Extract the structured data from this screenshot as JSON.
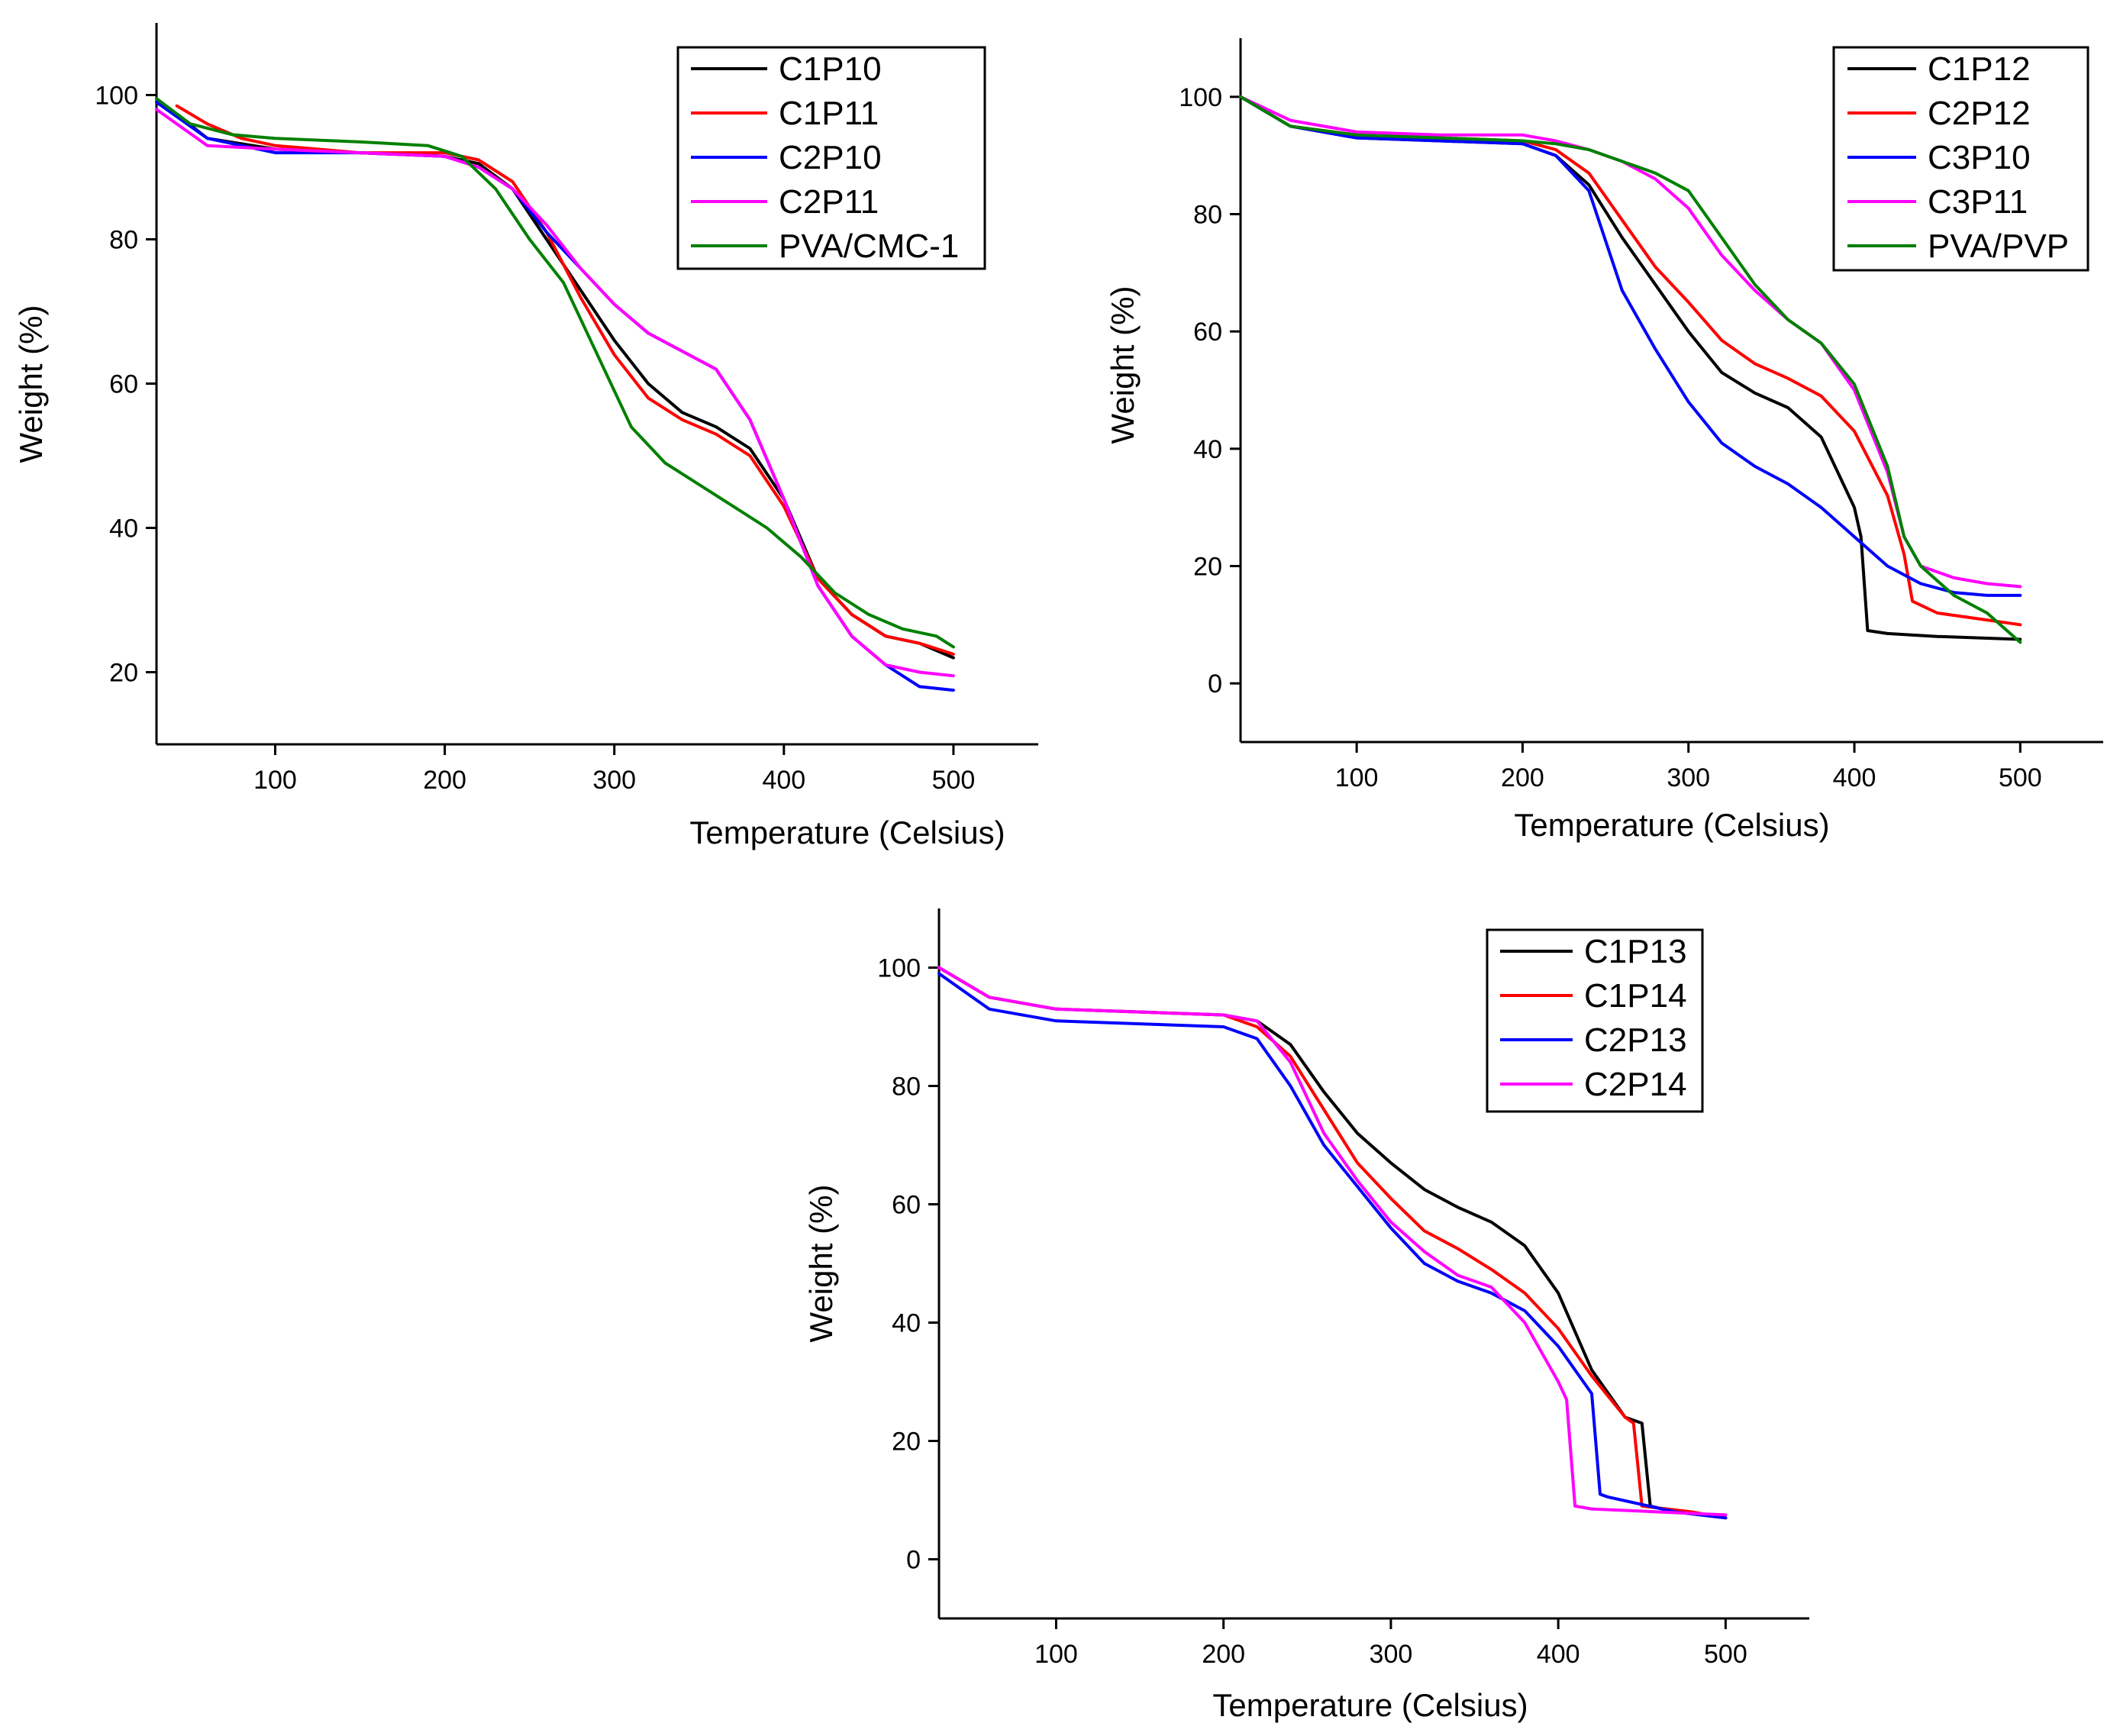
{
  "chart_data": [
    {
      "type": "line",
      "xlabel": "Temperature (Celsius)",
      "ylabel": "Weight (%)",
      "xlim": [
        30,
        550
      ],
      "ylim": [
        10,
        110
      ],
      "xticks": [
        100,
        200,
        300,
        400,
        500
      ],
      "yticks": [
        20,
        40,
        60,
        80,
        100
      ],
      "legend_position": "top-right",
      "series": [
        {
          "name": "C1P10",
          "color": "#000000",
          "x": [
            30,
            60,
            100,
            150,
            200,
            220,
            240,
            260,
            280,
            300,
            320,
            340,
            360,
            380,
            400,
            420,
            440,
            460,
            480,
            500
          ],
          "y": [
            99.5,
            94,
            92.5,
            92,
            91.5,
            90.5,
            87,
            80,
            73,
            66,
            60,
            56,
            54,
            51,
            44,
            33,
            28,
            25,
            24,
            22
          ]
        },
        {
          "name": "C1P11",
          "color": "#ff0000",
          "x": [
            42,
            60,
            80,
            100,
            150,
            200,
            220,
            240,
            260,
            280,
            300,
            320,
            340,
            360,
            380,
            400,
            420,
            440,
            460,
            480,
            500
          ],
          "y": [
            98.5,
            96,
            94,
            93,
            92,
            92,
            91,
            88,
            81,
            72,
            64,
            58,
            55,
            53,
            50,
            43,
            33,
            28,
            25,
            24,
            22.5
          ]
        },
        {
          "name": "C2P10",
          "color": "#0000ff",
          "x": [
            30,
            60,
            100,
            150,
            200,
            220,
            240,
            260,
            280,
            300,
            320,
            340,
            360,
            380,
            400,
            420,
            440,
            460,
            480,
            500
          ],
          "y": [
            99,
            94,
            92,
            92,
            91.5,
            90,
            87,
            81,
            76,
            71,
            67,
            64.5,
            62,
            55,
            44,
            32,
            25,
            21,
            18,
            17.5
          ]
        },
        {
          "name": "C2P11",
          "color": "#ff00ff",
          "x": [
            30,
            60,
            100,
            150,
            200,
            220,
            240,
            260,
            280,
            300,
            320,
            340,
            360,
            380,
            400,
            420,
            440,
            460,
            480,
            500
          ],
          "y": [
            98,
            93,
            92.5,
            92,
            91.5,
            90,
            87,
            82,
            76,
            71,
            67,
            64.5,
            62,
            55,
            44,
            32,
            25,
            21,
            20,
            19.5
          ]
        },
        {
          "name": "PVA/CMC-1",
          "color": "#008000",
          "x": [
            30,
            50,
            75,
            100,
            150,
            190,
            210,
            230,
            250,
            270,
            290,
            310,
            330,
            350,
            370,
            390,
            410,
            430,
            450,
            470,
            490,
            500
          ],
          "y": [
            99.5,
            96,
            94.5,
            94,
            93.5,
            93,
            91.5,
            87,
            80,
            74,
            64,
            54,
            49,
            46,
            43,
            40,
            36,
            31,
            28,
            26,
            25,
            23.5
          ]
        }
      ]
    },
    {
      "type": "line",
      "xlabel": "Temperature (Celsius)",
      "ylabel": "Weight (%)",
      "xlim": [
        30,
        550
      ],
      "ylim": [
        -10,
        110
      ],
      "xticks": [
        100,
        200,
        300,
        400,
        500
      ],
      "yticks": [
        0,
        20,
        40,
        60,
        80,
        100
      ],
      "legend_position": "top-right",
      "series": [
        {
          "name": "C1P12",
          "color": "#000000",
          "x": [
            30,
            60,
            100,
            150,
            200,
            220,
            240,
            260,
            280,
            300,
            320,
            340,
            360,
            380,
            400,
            404,
            408,
            420,
            450,
            500
          ],
          "y": [
            100,
            95,
            93,
            92.5,
            92,
            90,
            85,
            76,
            68,
            60,
            53,
            49.5,
            47,
            42,
            30,
            25,
            9,
            8.5,
            8,
            7.5
          ]
        },
        {
          "name": "C2P12",
          "color": "#ff0000",
          "x": [
            30,
            60,
            100,
            150,
            200,
            220,
            240,
            260,
            280,
            300,
            320,
            340,
            360,
            380,
            400,
            420,
            430,
            435,
            450,
            475,
            500
          ],
          "y": [
            100,
            95,
            93.5,
            93,
            92.5,
            91,
            87,
            79,
            71,
            65,
            58.5,
            54.5,
            52,
            49,
            43,
            32,
            22,
            14,
            12,
            11,
            10
          ]
        },
        {
          "name": "C3P10",
          "color": "#0000ff",
          "x": [
            30,
            33,
            60,
            100,
            150,
            200,
            220,
            240,
            260,
            280,
            300,
            320,
            340,
            360,
            380,
            400,
            420,
            440,
            460,
            480,
            500
          ],
          "y": [
            100,
            99.5,
            95,
            93,
            92.5,
            92,
            90,
            84,
            67,
            57,
            48,
            41,
            37,
            34,
            30,
            25,
            20,
            17,
            15.5,
            15,
            15
          ]
        },
        {
          "name": "C3P11",
          "color": "#ff00ff",
          "x": [
            30,
            60,
            100,
            150,
            200,
            220,
            240,
            260,
            280,
            300,
            320,
            340,
            360,
            380,
            400,
            420,
            430,
            440,
            460,
            480,
            500
          ],
          "y": [
            100,
            96,
            94,
            93.5,
            93.5,
            92.5,
            91,
            89,
            86,
            81,
            73,
            67,
            62,
            58,
            50,
            36,
            25,
            20,
            18,
            17,
            16.5
          ]
        },
        {
          "name": "PVA/PVP",
          "color": "#008000",
          "x": [
            30,
            60,
            100,
            150,
            200,
            220,
            240,
            260,
            280,
            300,
            320,
            340,
            360,
            380,
            400,
            420,
            430,
            440,
            460,
            480,
            500
          ],
          "y": [
            100,
            95,
            93.5,
            93,
            92.5,
            92,
            91,
            89,
            87,
            84,
            76,
            68,
            62,
            58,
            51,
            37,
            25,
            20,
            15,
            12,
            7
          ]
        }
      ]
    },
    {
      "type": "line",
      "xlabel": "Temperature (Celsius)",
      "ylabel": "Weight (%)",
      "xlim": [
        30,
        550
      ],
      "ylim": [
        -10,
        110
      ],
      "xticks": [
        100,
        200,
        300,
        400,
        500
      ],
      "yticks": [
        0,
        20,
        40,
        60,
        80,
        100
      ],
      "legend_position": "top-right",
      "series": [
        {
          "name": "C1P13",
          "color": "#000000",
          "x": [
            30,
            60,
            100,
            150,
            200,
            220,
            240,
            260,
            280,
            300,
            320,
            340,
            360,
            380,
            400,
            420,
            440,
            450,
            455,
            470,
            500
          ],
          "y": [
            100,
            95,
            93,
            92.5,
            92,
            91,
            87,
            79,
            72,
            67,
            62.5,
            59.5,
            57,
            53,
            45,
            32,
            24,
            23,
            9,
            8,
            7
          ]
        },
        {
          "name": "C1P14",
          "color": "#ff0000",
          "x": [
            30,
            60,
            100,
            150,
            200,
            220,
            240,
            260,
            280,
            300,
            320,
            340,
            360,
            380,
            400,
            420,
            440,
            445,
            450,
            480,
            500
          ],
          "y": [
            100,
            95,
            93,
            92.5,
            92,
            90,
            85,
            76,
            67,
            61,
            55.5,
            52.5,
            49,
            45,
            39,
            31,
            24,
            23,
            9,
            8,
            7
          ]
        },
        {
          "name": "C2P13",
          "color": "#0000ff",
          "x": [
            30,
            60,
            100,
            150,
            200,
            220,
            240,
            260,
            280,
            300,
            320,
            340,
            360,
            380,
            400,
            420,
            425,
            430,
            470,
            500
          ],
          "y": [
            99,
            93,
            91,
            90.5,
            90,
            88,
            80,
            70,
            63,
            56,
            50,
            47,
            45,
            42,
            36,
            28,
            11,
            10.5,
            8,
            7
          ]
        },
        {
          "name": "C2P14",
          "color": "#ff00ff",
          "x": [
            30,
            60,
            100,
            150,
            200,
            220,
            240,
            260,
            280,
            300,
            320,
            340,
            360,
            380,
            400,
            405,
            410,
            420,
            460,
            500
          ],
          "y": [
            100,
            95,
            93,
            92.5,
            92,
            91,
            84,
            72,
            64,
            57,
            52,
            48,
            46,
            40,
            30,
            27,
            9,
            8.5,
            8,
            7.5
          ]
        }
      ]
    }
  ]
}
